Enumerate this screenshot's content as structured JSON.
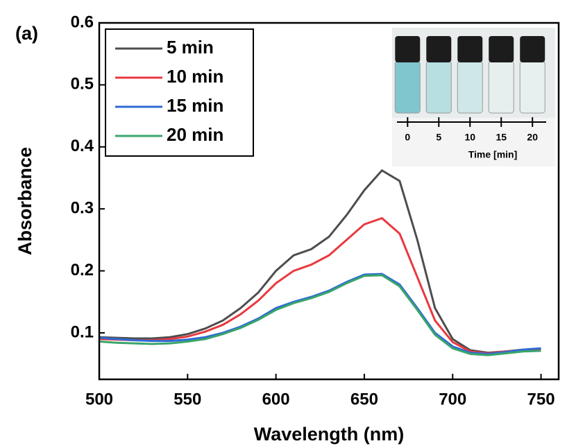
{
  "chart_data": {
    "type": "line",
    "panel_label": "(a)",
    "xlabel": "Wavelength (nm)",
    "ylabel": "Absorbance",
    "x": [
      500,
      510,
      520,
      530,
      540,
      550,
      560,
      570,
      580,
      590,
      600,
      610,
      620,
      630,
      640,
      650,
      660,
      670,
      680,
      690,
      700,
      710,
      720,
      730,
      740,
      750
    ],
    "series": [
      {
        "name": "5 min",
        "color": "#4d4d4d",
        "values": [
          0.093,
          0.092,
          0.091,
          0.091,
          0.093,
          0.098,
          0.107,
          0.12,
          0.14,
          0.165,
          0.2,
          0.225,
          0.235,
          0.255,
          0.29,
          0.33,
          0.362,
          0.345,
          0.25,
          0.14,
          0.09,
          0.072,
          0.068,
          0.07,
          0.073,
          0.074
        ]
      },
      {
        "name": "10 min",
        "color": "#e8393f",
        "values": [
          0.09,
          0.089,
          0.088,
          0.088,
          0.09,
          0.094,
          0.102,
          0.113,
          0.13,
          0.152,
          0.18,
          0.2,
          0.21,
          0.225,
          0.25,
          0.275,
          0.285,
          0.26,
          0.19,
          0.12,
          0.085,
          0.07,
          0.067,
          0.07,
          0.072,
          0.073
        ]
      },
      {
        "name": "15 min",
        "color": "#2e6ad6",
        "values": [
          0.092,
          0.09,
          0.088,
          0.087,
          0.087,
          0.089,
          0.093,
          0.1,
          0.11,
          0.123,
          0.14,
          0.15,
          0.158,
          0.168,
          0.182,
          0.194,
          0.195,
          0.178,
          0.14,
          0.1,
          0.078,
          0.068,
          0.066,
          0.069,
          0.073,
          0.075
        ]
      },
      {
        "name": "20 min",
        "color": "#3aa56b",
        "values": [
          0.086,
          0.084,
          0.083,
          0.082,
          0.083,
          0.086,
          0.09,
          0.098,
          0.108,
          0.121,
          0.137,
          0.148,
          0.156,
          0.166,
          0.18,
          0.192,
          0.193,
          0.175,
          0.137,
          0.097,
          0.075,
          0.066,
          0.064,
          0.067,
          0.07,
          0.071
        ]
      }
    ],
    "xlim": [
      500,
      760
    ],
    "ylim": [
      0.025,
      0.6
    ],
    "xticks": [
      500,
      550,
      600,
      650,
      700,
      750
    ],
    "yticks": [
      0.1,
      0.2,
      0.3,
      0.4,
      0.5,
      0.6
    ],
    "legend": "upper left",
    "inset": {
      "xlabel": "Time [min]",
      "xlim": [
        -1.7,
        22.2
      ],
      "xticks": [
        0,
        5,
        10,
        15,
        20
      ]
    }
  }
}
